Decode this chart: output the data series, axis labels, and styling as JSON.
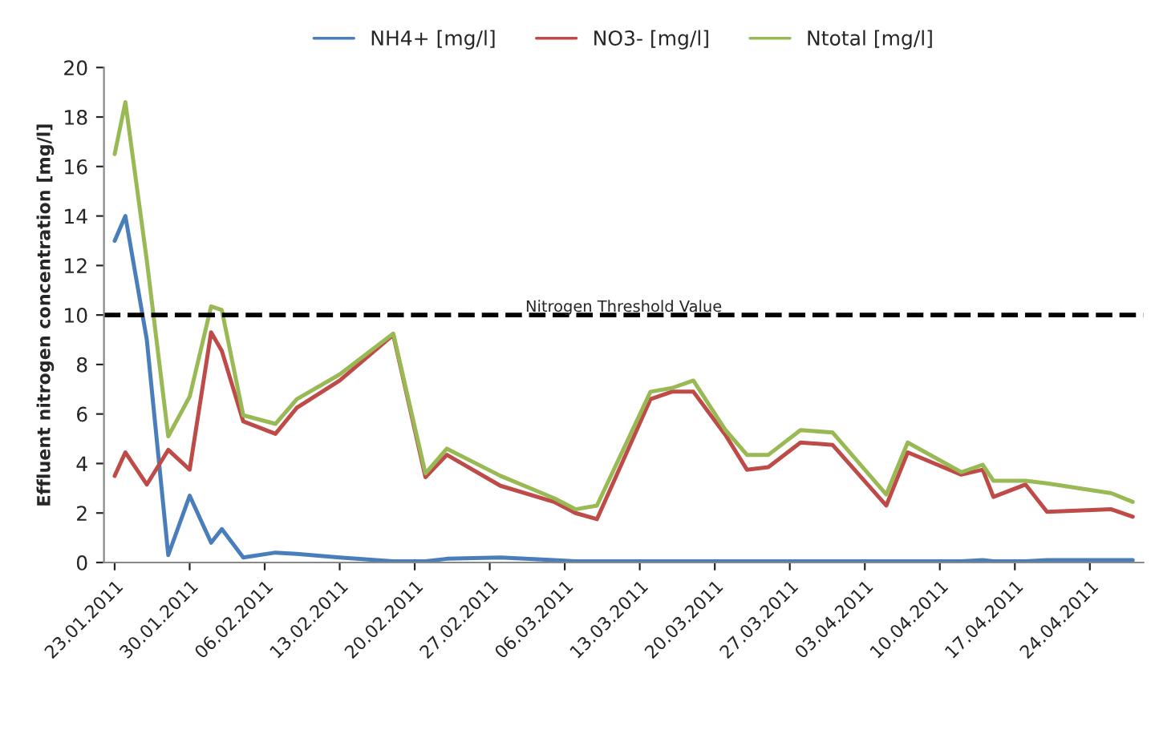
{
  "chart_data": {
    "type": "line",
    "ylabel": "Effluent nitrogen concentration [mg/l]",
    "x": [
      "2011-01-23",
      "2011-01-24",
      "2011-01-26",
      "2011-01-28",
      "2011-01-30",
      "2011-02-01",
      "2011-02-02",
      "2011-02-04",
      "2011-02-07",
      "2011-02-09",
      "2011-02-13",
      "2011-02-18",
      "2011-02-21",
      "2011-02-23",
      "2011-02-28",
      "2011-03-05",
      "2011-03-07",
      "2011-03-09",
      "2011-03-14",
      "2011-03-16",
      "2011-03-18",
      "2011-03-21",
      "2011-03-23",
      "2011-03-25",
      "2011-03-28",
      "2011-03-31",
      "2011-04-05",
      "2011-04-07",
      "2011-04-12",
      "2011-04-14",
      "2011-04-15",
      "2011-04-18",
      "2011-04-20",
      "2011-04-26",
      "2011-04-28"
    ],
    "series": [
      {
        "name": "NH4+ [mg/l]",
        "color": "#4a7ebb",
        "values": [
          13,
          14,
          9,
          0.3,
          2.7,
          0.8,
          1.35,
          0.2,
          0.4,
          0.35,
          0.2,
          0.05,
          0.05,
          0.15,
          0.2,
          0.1,
          0.05,
          0.05,
          0.05,
          0.05,
          0.05,
          0.05,
          0.05,
          0.05,
          0.05,
          0.05,
          0.05,
          0.05,
          0.05,
          0.1,
          0.05,
          0.05,
          0.1,
          0.1,
          0.1
        ]
      },
      {
        "name": "NO3- [mg/l]",
        "color": "#be4b48",
        "values": [
          3.5,
          4.45,
          3.15,
          4.55,
          3.75,
          9.3,
          8.55,
          5.7,
          5.2,
          6.25,
          7.35,
          9.2,
          3.45,
          4.35,
          3.1,
          2.45,
          2.0,
          1.75,
          6.6,
          6.9,
          6.9,
          5.15,
          3.75,
          3.85,
          4.85,
          4.75,
          2.3,
          4.45,
          3.55,
          3.75,
          2.65,
          3.15,
          2.05,
          2.15,
          1.85
        ]
      },
      {
        "name": "Ntotal [mg/l]",
        "color": "#98b954",
        "values": [
          16.5,
          18.6,
          12.2,
          5.1,
          6.7,
          10.35,
          10.2,
          5.95,
          5.6,
          6.6,
          7.6,
          9.25,
          3.6,
          4.6,
          3.5,
          2.6,
          2.15,
          2.3,
          6.9,
          7.05,
          7.35,
          5.35,
          4.35,
          4.35,
          5.35,
          5.25,
          2.75,
          4.85,
          3.65,
          3.95,
          3.3,
          3.3,
          3.2,
          2.8,
          2.45
        ]
      }
    ],
    "xlim": [
      "2011-01-22",
      "2011-04-29"
    ],
    "xticks": [
      {
        "value": "2011-01-23",
        "label": "23.01.2011"
      },
      {
        "value": "2011-01-30",
        "label": "30.01.2011"
      },
      {
        "value": "2011-02-06",
        "label": "06.02.2011"
      },
      {
        "value": "2011-02-13",
        "label": "13.02.2011"
      },
      {
        "value": "2011-02-20",
        "label": "20.02.2011"
      },
      {
        "value": "2011-02-27",
        "label": "27.02.2011"
      },
      {
        "value": "2011-03-06",
        "label": "06.03.2011"
      },
      {
        "value": "2011-03-13",
        "label": "13.03.2011"
      },
      {
        "value": "2011-03-20",
        "label": "20.03.2011"
      },
      {
        "value": "2011-03-27",
        "label": "27.03.2011"
      },
      {
        "value": "2011-04-03",
        "label": "03.04.2011"
      },
      {
        "value": "2011-04-10",
        "label": "10.04.2011"
      },
      {
        "value": "2011-04-17",
        "label": "17.04.2011"
      },
      {
        "value": "2011-04-24",
        "label": "24.04.2011"
      }
    ],
    "ylim": [
      0,
      20
    ],
    "yticks": [
      0,
      2,
      4,
      6,
      8,
      10,
      12,
      14,
      16,
      18,
      20
    ],
    "ref_lines": [
      {
        "axis": "y",
        "value": 10,
        "label": "Nitrogen Threshold Value",
        "color": "#000000",
        "line_style": "dashed"
      }
    ],
    "grid": false,
    "legend": "top",
    "marker": "none",
    "line_style": "solid"
  }
}
